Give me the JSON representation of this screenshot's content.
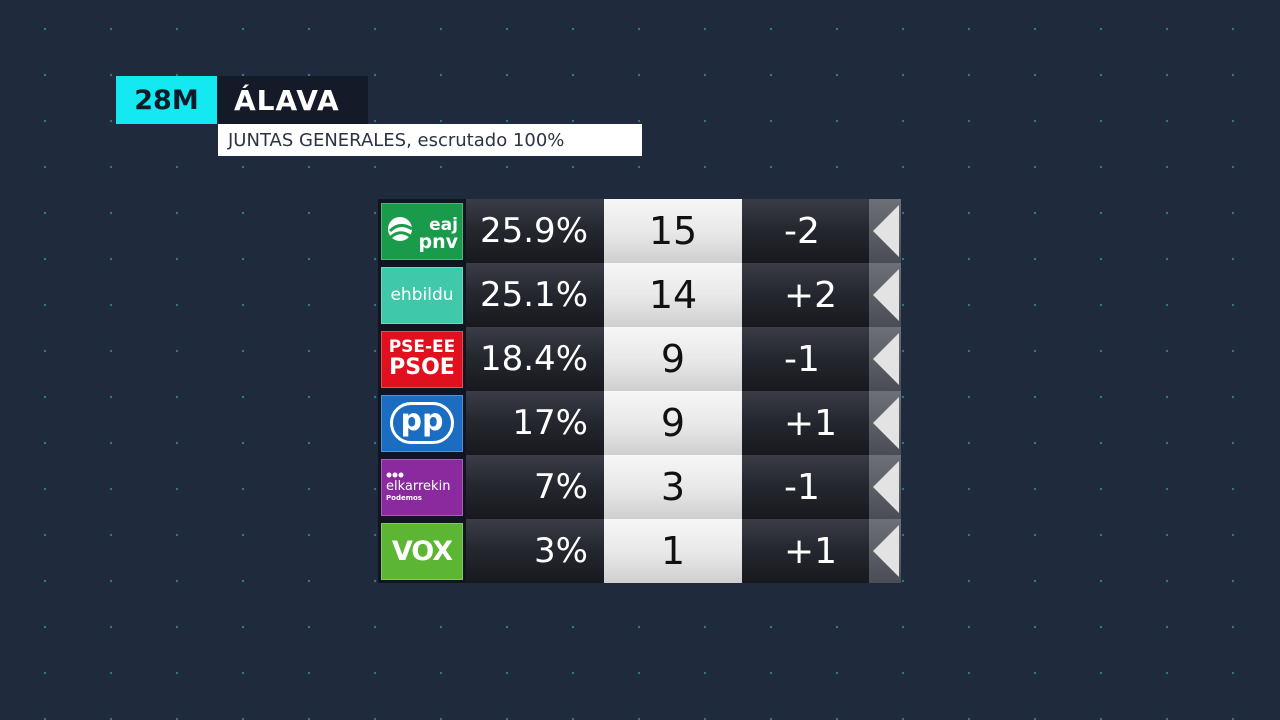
{
  "header": {
    "tag": "28M",
    "title": "ÁLAVA",
    "subtitle": "JUNTAS GENERALES, escrutado 100%"
  },
  "rows": [
    {
      "party": "EAJ-PNV",
      "logo_lines": [
        "eaj",
        "pnv"
      ],
      "logo_color": "#1a9a4b",
      "pct": "25.9%",
      "seats": "15",
      "diff": "-2"
    },
    {
      "party": "EH Bildu",
      "logo_lines": [
        "ehbildu"
      ],
      "logo_color": "#3fc9aa",
      "pct": "25.1%",
      "seats": "14",
      "diff": "+2"
    },
    {
      "party": "PSE-EE PSOE",
      "logo_lines": [
        "PSE-EE",
        "PSOE"
      ],
      "logo_color": "#e0101e",
      "pct": "18.4%",
      "seats": "9",
      "diff": "-1"
    },
    {
      "party": "PP",
      "logo_lines": [
        "pp"
      ],
      "logo_color": "#1b6dc1",
      "pct": "17%",
      "seats": "9",
      "diff": "+1"
    },
    {
      "party": "Elkarrekin Podemos",
      "logo_lines": [
        "elkarrekin",
        "Podemos"
      ],
      "logo_color": "#8a2a9e",
      "pct": "7%",
      "seats": "3",
      "diff": "-1"
    },
    {
      "party": "VOX",
      "logo_lines": [
        "VOX"
      ],
      "logo_color": "#5cb533",
      "pct": "3%",
      "seats": "1",
      "diff": "+1"
    }
  ]
}
